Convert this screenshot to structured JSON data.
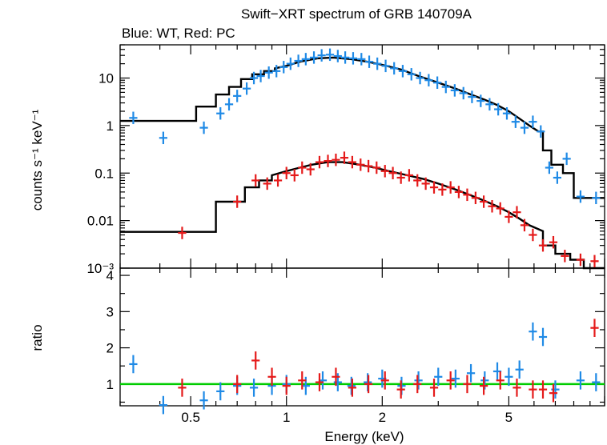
{
  "chart_data": [
    {
      "type": "scatter",
      "panel": "spectrum",
      "title": "Swift−XRT spectrum of GRB 140709A",
      "subtitle": "Blue: WT, Red: PC",
      "xlabel": "Energy (keV)",
      "ylabel": "counts s⁻¹ keV⁻¹",
      "xscale": "log",
      "yscale": "log",
      "xlim": [
        0.3,
        10
      ],
      "ylim": [
        0.001,
        50
      ],
      "y_tick_labels": [
        {
          "value": 0.001,
          "label": "10⁻³"
        },
        {
          "value": 0.01,
          "label": "0.01"
        },
        {
          "value": 0.1,
          "label": "0.1"
        },
        {
          "value": 1,
          "label": "1"
        },
        {
          "value": 10,
          "label": "10"
        }
      ],
      "colors": {
        "WT": "#1f8ae6",
        "PC": "#e51a1a",
        "model": "#000000"
      },
      "series": [
        {
          "name": "WT",
          "color": "#1f8ae6",
          "points": [
            [
              0.33,
              1.45
            ],
            [
              0.41,
              0.55
            ],
            [
              0.55,
              0.9
            ],
            [
              0.62,
              1.8
            ],
            [
              0.66,
              2.8
            ],
            [
              0.7,
              4.2
            ],
            [
              0.75,
              6
            ],
            [
              0.79,
              10
            ],
            [
              0.83,
              11
            ],
            [
              0.88,
              13
            ],
            [
              0.93,
              14
            ],
            [
              0.98,
              17
            ],
            [
              1.03,
              20
            ],
            [
              1.09,
              23
            ],
            [
              1.15,
              25
            ],
            [
              1.22,
              27
            ],
            [
              1.29,
              30
            ],
            [
              1.37,
              31
            ],
            [
              1.45,
              29
            ],
            [
              1.53,
              27
            ],
            [
              1.62,
              26
            ],
            [
              1.72,
              25
            ],
            [
              1.82,
              22
            ],
            [
              1.93,
              20
            ],
            [
              2.05,
              18
            ],
            [
              2.18,
              16
            ],
            [
              2.32,
              14
            ],
            [
              2.47,
              12
            ],
            [
              2.63,
              10
            ],
            [
              2.8,
              9
            ],
            [
              2.98,
              8
            ],
            [
              3.17,
              6.5
            ],
            [
              3.38,
              5.5
            ],
            [
              3.6,
              4.8
            ],
            [
              3.83,
              4
            ],
            [
              4.08,
              3.3
            ],
            [
              4.35,
              2.8
            ],
            [
              4.63,
              2.2
            ],
            [
              4.93,
              1.8
            ],
            [
              5.25,
              1.2
            ],
            [
              5.6,
              0.9
            ],
            [
              5.95,
              1.2
            ],
            [
              6.3,
              0.75
            ],
            [
              6.7,
              0.13
            ],
            [
              7.1,
              0.08
            ],
            [
              7.6,
              0.2
            ],
            [
              8.4,
              0.032
            ],
            [
              9.4,
              0.03
            ]
          ]
        },
        {
          "name": "PC",
          "color": "#e51a1a",
          "points": [
            [
              0.47,
              0.0055
            ],
            [
              0.7,
              0.025
            ],
            [
              0.8,
              0.07
            ],
            [
              0.87,
              0.06
            ],
            [
              0.94,
              0.07
            ],
            [
              1.0,
              0.1
            ],
            [
              1.06,
              0.09
            ],
            [
              1.12,
              0.13
            ],
            [
              1.19,
              0.12
            ],
            [
              1.27,
              0.17
            ],
            [
              1.35,
              0.18
            ],
            [
              1.43,
              0.19
            ],
            [
              1.52,
              0.21
            ],
            [
              1.61,
              0.17
            ],
            [
              1.71,
              0.15
            ],
            [
              1.81,
              0.14
            ],
            [
              1.92,
              0.13
            ],
            [
              2.04,
              0.11
            ],
            [
              2.16,
              0.1
            ],
            [
              2.29,
              0.08
            ],
            [
              2.43,
              0.09
            ],
            [
              2.58,
              0.07
            ],
            [
              2.74,
              0.06
            ],
            [
              2.91,
              0.05
            ],
            [
              3.09,
              0.045
            ],
            [
              3.28,
              0.05
            ],
            [
              3.48,
              0.04
            ],
            [
              3.7,
              0.035
            ],
            [
              3.93,
              0.03
            ],
            [
              4.17,
              0.025
            ],
            [
              4.43,
              0.02
            ],
            [
              4.7,
              0.018
            ],
            [
              5.0,
              0.012
            ],
            [
              5.3,
              0.015
            ],
            [
              5.6,
              0.008
            ],
            [
              5.95,
              0.005
            ],
            [
              6.4,
              0.003
            ],
            [
              6.9,
              0.0035
            ],
            [
              7.5,
              0.0018
            ],
            [
              8.4,
              0.0015
            ],
            [
              9.3,
              0.0014
            ]
          ]
        }
      ],
      "models": [
        {
          "name": "WT model",
          "color": "#000000",
          "x": [
            0.3,
            0.52,
            0.52,
            0.6,
            0.6,
            0.66,
            0.66,
            0.72,
            0.72,
            0.78,
            0.78,
            0.85,
            0.85,
            0.92,
            0.92,
            1.0,
            1.1,
            1.25,
            1.4,
            1.6,
            1.8,
            2.0,
            2.3,
            2.6,
            3.0,
            3.4,
            3.8,
            4.2,
            4.6,
            5.0,
            5.4,
            5.8,
            6.2,
            6.4,
            6.4,
            6.8,
            6.8,
            7.4,
            7.4,
            8.0,
            8.0,
            10
          ],
          "y": [
            1.25,
            1.25,
            2.5,
            2.5,
            4.5,
            4.5,
            6.5,
            6.5,
            9.5,
            9.5,
            12,
            12,
            14,
            14,
            16,
            18,
            22,
            26,
            27,
            25,
            22,
            19,
            15,
            11,
            8,
            6,
            4.5,
            3.5,
            2.7,
            2.0,
            1.4,
            1.0,
            0.75,
            0.75,
            0.3,
            0.3,
            0.15,
            0.15,
            0.1,
            0.1,
            0.03,
            0.03
          ]
        },
        {
          "name": "PC model",
          "color": "#000000",
          "x": [
            0.3,
            0.6,
            0.6,
            0.74,
            0.74,
            0.82,
            0.82,
            0.9,
            0.9,
            1.0,
            1.1,
            1.2,
            1.35,
            1.5,
            1.7,
            1.9,
            2.1,
            2.4,
            2.7,
            3.0,
            3.4,
            3.8,
            4.2,
            4.6,
            5.0,
            5.4,
            5.8,
            6.4,
            6.4,
            7.0,
            7.0,
            7.8,
            7.8,
            8.6,
            8.6,
            10
          ],
          "y": [
            0.0058,
            0.0058,
            0.025,
            0.025,
            0.05,
            0.05,
            0.07,
            0.07,
            0.09,
            0.11,
            0.13,
            0.15,
            0.17,
            0.17,
            0.15,
            0.13,
            0.11,
            0.09,
            0.075,
            0.06,
            0.045,
            0.034,
            0.026,
            0.02,
            0.015,
            0.011,
            0.008,
            0.006,
            0.003,
            0.003,
            0.002,
            0.002,
            0.0015,
            0.0015,
            0.001,
            0.001
          ]
        }
      ]
    },
    {
      "type": "scatter",
      "panel": "ratio",
      "xlabel": "Energy (keV)",
      "ylabel": "ratio",
      "xscale": "log",
      "yscale": "linear",
      "xlim": [
        0.3,
        10
      ],
      "ylim": [
        0.4,
        4.2
      ],
      "x_tick_labels": [
        {
          "value": 0.5,
          "label": "0.5"
        },
        {
          "value": 1,
          "label": "1"
        },
        {
          "value": 2,
          "label": "2"
        },
        {
          "value": 5,
          "label": "5"
        }
      ],
      "y_tick_labels": [
        {
          "value": 1,
          "label": "1"
        },
        {
          "value": 2,
          "label": "2"
        },
        {
          "value": 3,
          "label": "3"
        },
        {
          "value": 4,
          "label": "4"
        }
      ],
      "reference_line": {
        "y": 1,
        "color": "#00cc00"
      },
      "series": [
        {
          "name": "WT",
          "color": "#1f8ae6",
          "points": [
            [
              0.33,
              1.55
            ],
            [
              0.41,
              0.42
            ],
            [
              0.55,
              0.55
            ],
            [
              0.62,
              0.8
            ],
            [
              0.7,
              0.95
            ],
            [
              0.79,
              0.9
            ],
            [
              0.9,
              0.95
            ],
            [
              1.0,
              1.0
            ],
            [
              1.15,
              0.95
            ],
            [
              1.3,
              1.1
            ],
            [
              1.45,
              1.05
            ],
            [
              1.6,
              0.95
            ],
            [
              1.8,
              1.05
            ],
            [
              2.0,
              1.15
            ],
            [
              2.3,
              0.95
            ],
            [
              2.6,
              1.1
            ],
            [
              3.0,
              1.2
            ],
            [
              3.4,
              1.15
            ],
            [
              3.8,
              1.3
            ],
            [
              4.2,
              1.1
            ],
            [
              4.6,
              1.35
            ],
            [
              5.0,
              1.2
            ],
            [
              5.4,
              1.4
            ],
            [
              5.95,
              2.45
            ],
            [
              6.4,
              2.3
            ],
            [
              7.0,
              0.85
            ],
            [
              8.4,
              1.1
            ],
            [
              9.4,
              1.05
            ]
          ]
        },
        {
          "name": "PC",
          "color": "#e51a1a",
          "points": [
            [
              0.47,
              0.9
            ],
            [
              0.7,
              1.0
            ],
            [
              0.8,
              1.65
            ],
            [
              0.9,
              1.2
            ],
            [
              1.0,
              0.95
            ],
            [
              1.12,
              1.1
            ],
            [
              1.27,
              1.05
            ],
            [
              1.43,
              1.2
            ],
            [
              1.61,
              0.9
            ],
            [
              1.81,
              1.0
            ],
            [
              2.04,
              1.1
            ],
            [
              2.29,
              0.85
            ],
            [
              2.58,
              1.0
            ],
            [
              2.91,
              0.9
            ],
            [
              3.28,
              1.1
            ],
            [
              3.7,
              1.0
            ],
            [
              4.17,
              0.95
            ],
            [
              4.7,
              1.1
            ],
            [
              5.3,
              0.9
            ],
            [
              5.95,
              0.85
            ],
            [
              6.4,
              0.85
            ],
            [
              6.9,
              0.75
            ],
            [
              9.3,
              2.55
            ]
          ]
        }
      ]
    }
  ]
}
